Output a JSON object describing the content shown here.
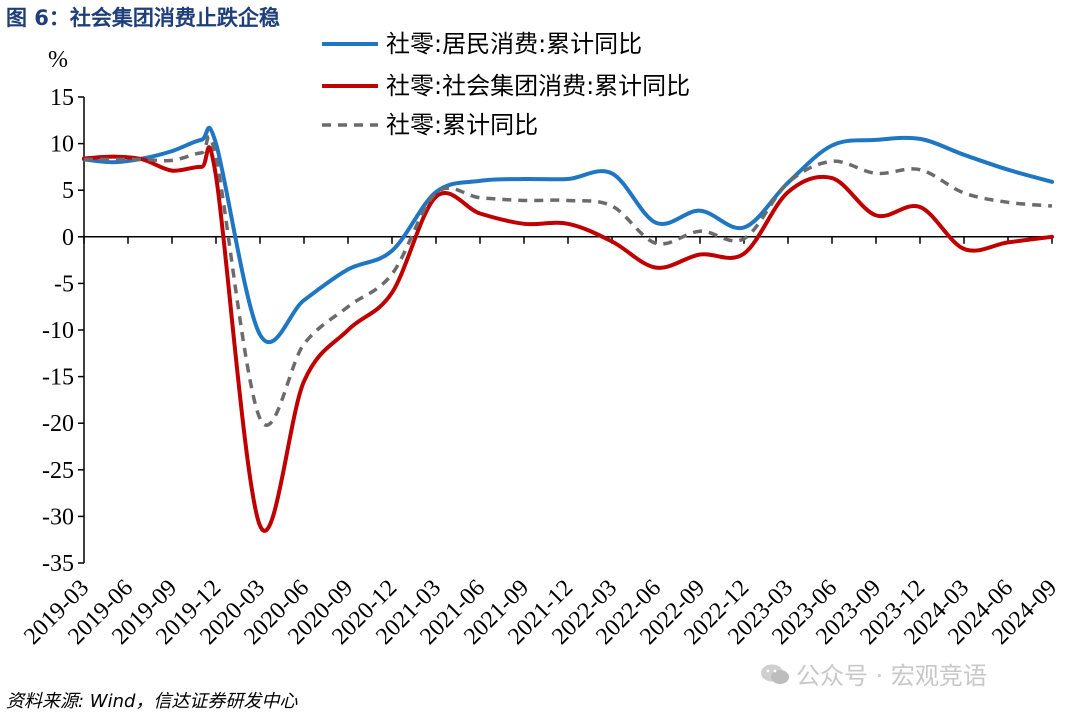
{
  "figure": {
    "title": "图 6：社会集团消费止跌企稳",
    "source": "资料来源: Wind，信达证券研发中心",
    "watermark": "公众号 · 宏观竞语"
  },
  "chart_data": {
    "type": "line",
    "ylabel": "%",
    "ylim": [
      -35,
      15
    ],
    "yticks": [
      15,
      10,
      5,
      0,
      -5,
      -10,
      -15,
      -20,
      -25,
      -30,
      -35
    ],
    "xlim": [
      "2019-03",
      "2024-09"
    ],
    "xticks": [
      "2019-03",
      "2019-06",
      "2019-09",
      "2019-12",
      "2020-03",
      "2020-06",
      "2020-09",
      "2020-12",
      "2021-03",
      "2021-06",
      "2021-09",
      "2021-12",
      "2022-03",
      "2022-06",
      "2022-09",
      "2022-12",
      "2023-03",
      "2023-06",
      "2023-09",
      "2023-12",
      "2024-03",
      "2024-06",
      "2024-09"
    ],
    "legend_position": "top-center",
    "grid": false,
    "series": [
      {
        "name": "社零:居民消费:累计同比",
        "color": "#1f77c4",
        "style": "solid",
        "points": [
          [
            "2019-03",
            8.3
          ],
          [
            "2019-05",
            8.0
          ],
          [
            "2019-07",
            8.4
          ],
          [
            "2019-09",
            9.2
          ],
          [
            "2019-11",
            10.4
          ],
          [
            "2019-12",
            10.0
          ],
          [
            "2020-03",
            -10.5
          ],
          [
            "2020-06",
            -6.8
          ],
          [
            "2020-09",
            -3.5
          ],
          [
            "2020-12",
            -1.5
          ],
          [
            "2021-03",
            4.8
          ],
          [
            "2021-06",
            6.0
          ],
          [
            "2021-09",
            6.2
          ],
          [
            "2021-12",
            6.2
          ],
          [
            "2022-03",
            6.8
          ],
          [
            "2022-06",
            1.5
          ],
          [
            "2022-09",
            2.8
          ],
          [
            "2022-12",
            1.0
          ],
          [
            "2023-03",
            5.8
          ],
          [
            "2023-06",
            9.8
          ],
          [
            "2023-09",
            10.4
          ],
          [
            "2023-12",
            10.5
          ],
          [
            "2024-03",
            8.8
          ],
          [
            "2024-06",
            7.2
          ],
          [
            "2024-09",
            5.9
          ]
        ]
      },
      {
        "name": "社零:社会集团消费:累计同比",
        "color": "#c00000",
        "style": "solid",
        "points": [
          [
            "2019-03",
            8.4
          ],
          [
            "2019-05",
            8.6
          ],
          [
            "2019-07",
            8.3
          ],
          [
            "2019-09",
            7.1
          ],
          [
            "2019-11",
            7.5
          ],
          [
            "2019-12",
            6.5
          ],
          [
            "2020-03",
            -31.0
          ],
          [
            "2020-06",
            -15.5
          ],
          [
            "2020-09",
            -10.0
          ],
          [
            "2020-12",
            -6.0
          ],
          [
            "2021-03",
            4.3
          ],
          [
            "2021-06",
            2.5
          ],
          [
            "2021-09",
            1.4
          ],
          [
            "2021-12",
            1.4
          ],
          [
            "2022-03",
            -0.5
          ],
          [
            "2022-06",
            -3.3
          ],
          [
            "2022-09",
            -1.9
          ],
          [
            "2022-12",
            -1.8
          ],
          [
            "2023-03",
            4.8
          ],
          [
            "2023-06",
            6.3
          ],
          [
            "2023-09",
            2.3
          ],
          [
            "2023-12",
            3.2
          ],
          [
            "2024-03",
            -1.3
          ],
          [
            "2024-06",
            -0.6
          ],
          [
            "2024-09",
            0.0
          ]
        ]
      },
      {
        "name": "社零:累计同比",
        "color": "#6b6b6b",
        "style": "dashed",
        "points": [
          [
            "2019-03",
            8.3
          ],
          [
            "2019-05",
            8.3
          ],
          [
            "2019-07",
            8.3
          ],
          [
            "2019-09",
            8.2
          ],
          [
            "2019-11",
            9.0
          ],
          [
            "2019-12",
            8.5
          ],
          [
            "2020-03",
            -19.5
          ],
          [
            "2020-06",
            -11.5
          ],
          [
            "2020-09",
            -7.5
          ],
          [
            "2020-12",
            -4.0
          ],
          [
            "2021-03",
            4.7
          ],
          [
            "2021-06",
            4.2
          ],
          [
            "2021-09",
            3.9
          ],
          [
            "2021-12",
            3.9
          ],
          [
            "2022-03",
            3.3
          ],
          [
            "2022-06",
            -0.7
          ],
          [
            "2022-09",
            0.6
          ],
          [
            "2022-12",
            -0.2
          ],
          [
            "2023-03",
            5.8
          ],
          [
            "2023-06",
            8.1
          ],
          [
            "2023-09",
            6.8
          ],
          [
            "2023-12",
            7.2
          ],
          [
            "2024-03",
            4.7
          ],
          [
            "2024-06",
            3.7
          ],
          [
            "2024-09",
            3.3
          ]
        ]
      }
    ]
  }
}
